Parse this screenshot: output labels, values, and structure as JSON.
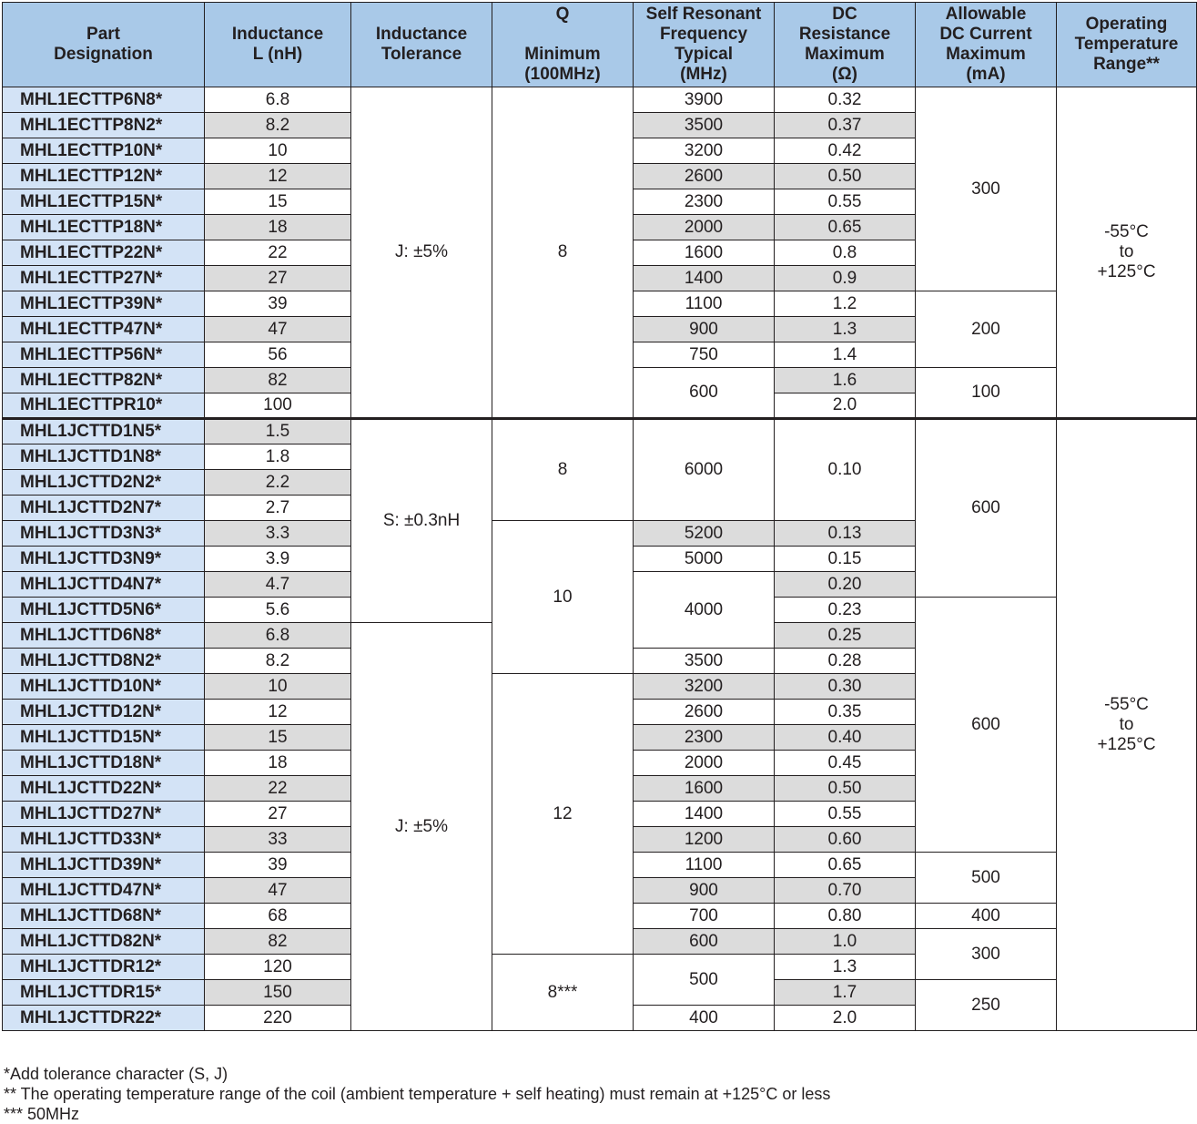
{
  "headers": [
    "Part\nDesignation",
    "Inductance\nL (nH)",
    "Inductance\nTolerance",
    "Q\n\nMinimum\n(100MHz)",
    "Self Resonant\nFrequency\nTypical\n(MHz)",
    "DC\nResistance\nMaximum\n(Ω)",
    "Allowable\nDC Current\nMaximum\n(mA)",
    "Operating\nTemperature\nRange**"
  ],
  "rows": [
    {
      "part": "MHL1ECTTP6N8*",
      "L": "6.8",
      "srf": "3900",
      "dcr": "0.32"
    },
    {
      "part": "MHL1ECTTP8N2*",
      "L": "8.2",
      "srf": "3500",
      "dcr": "0.37"
    },
    {
      "part": "MHL1ECTTP10N*",
      "L": "10",
      "srf": "3200",
      "dcr": "0.42"
    },
    {
      "part": "MHL1ECTTP12N*",
      "L": "12",
      "srf": "2600",
      "dcr": "0.50"
    },
    {
      "part": "MHL1ECTTP15N*",
      "L": "15",
      "srf": "2300",
      "dcr": "0.55"
    },
    {
      "part": "MHL1ECTTP18N*",
      "L": "18",
      "srf": "2000",
      "dcr": "0.65"
    },
    {
      "part": "MHL1ECTTP22N*",
      "L": "22",
      "srf": "1600",
      "dcr": "0.8"
    },
    {
      "part": "MHL1ECTTP27N*",
      "L": "27",
      "srf": "1400",
      "dcr": "0.9"
    },
    {
      "part": "MHL1ECTTP39N*",
      "L": "39",
      "srf": "1100",
      "dcr": "1.2"
    },
    {
      "part": "MHL1ECTTP47N*",
      "L": "47",
      "srf": "900",
      "dcr": "1.3"
    },
    {
      "part": "MHL1ECTTP56N*",
      "L": "56",
      "srf": "750",
      "dcr": "1.4"
    },
    {
      "part": "MHL1ECTTP82N*",
      "L": "82",
      "srf": "600",
      "dcr": "1.6"
    },
    {
      "part": "MHL1ECTTPR10*",
      "L": "100",
      "srf": null,
      "dcr": "2.0"
    },
    {
      "part": "MHL1JCTTD1N5*",
      "L": "1.5",
      "srf": "6000",
      "dcr": "0.10"
    },
    {
      "part": "MHL1JCTTD1N8*",
      "L": "1.8",
      "srf": null,
      "dcr": null
    },
    {
      "part": "MHL1JCTTD2N2*",
      "L": "2.2",
      "srf": null,
      "dcr": null
    },
    {
      "part": "MHL1JCTTD2N7*",
      "L": "2.7",
      "srf": null,
      "dcr": null
    },
    {
      "part": "MHL1JCTTD3N3*",
      "L": "3.3",
      "srf": "5200",
      "dcr": "0.13"
    },
    {
      "part": "MHL1JCTTD3N9*",
      "L": "3.9",
      "srf": "5000",
      "dcr": "0.15"
    },
    {
      "part": "MHL1JCTTD4N7*",
      "L": "4.7",
      "srf": "4000",
      "dcr": "0.20"
    },
    {
      "part": "MHL1JCTTD5N6*",
      "L": "5.6",
      "srf": null,
      "dcr": "0.23"
    },
    {
      "part": "MHL1JCTTD6N8*",
      "L": "6.8",
      "srf": null,
      "dcr": "0.25"
    },
    {
      "part": "MHL1JCTTD8N2*",
      "L": "8.2",
      "srf": "3500",
      "dcr": "0.28"
    },
    {
      "part": "MHL1JCTTD10N*",
      "L": "10",
      "srf": "3200",
      "dcr": "0.30"
    },
    {
      "part": "MHL1JCTTD12N*",
      "L": "12",
      "srf": "2600",
      "dcr": "0.35"
    },
    {
      "part": "MHL1JCTTD15N*",
      "L": "15",
      "srf": "2300",
      "dcr": "0.40"
    },
    {
      "part": "MHL1JCTTD18N*",
      "L": "18",
      "srf": "2000",
      "dcr": "0.45"
    },
    {
      "part": "MHL1JCTTD22N*",
      "L": "22",
      "srf": "1600",
      "dcr": "0.50"
    },
    {
      "part": "MHL1JCTTD27N*",
      "L": "27",
      "srf": "1400",
      "dcr": "0.55"
    },
    {
      "part": "MHL1JCTTD33N*",
      "L": "33",
      "srf": "1200",
      "dcr": "0.60"
    },
    {
      "part": "MHL1JCTTD39N*",
      "L": "39",
      "srf": "1100",
      "dcr": "0.65"
    },
    {
      "part": "MHL1JCTTD47N*",
      "L": "47",
      "srf": "900",
      "dcr": "0.70"
    },
    {
      "part": "MHL1JCTTD68N*",
      "L": "68",
      "srf": "700",
      "dcr": "0.80"
    },
    {
      "part": "MHL1JCTTD82N*",
      "L": "82",
      "srf": "600",
      "dcr": "1.0"
    },
    {
      "part": "MHL1JCTTDR12*",
      "L": "120",
      "srf": "500",
      "dcr": "1.3"
    },
    {
      "part": "MHL1JCTTDR15*",
      "L": "150",
      "srf": null,
      "dcr": "1.7"
    },
    {
      "part": "MHL1JCTTDR22*",
      "L": "220",
      "srf": "400",
      "dcr": "2.0"
    }
  ],
  "merged": {
    "tolerance": [
      {
        "row": 0,
        "span": 13,
        "text": "J: ±5%"
      },
      {
        "row": 13,
        "span": 8,
        "text": "S: ±0.3nH"
      },
      {
        "row": 21,
        "span": 16,
        "text": "J: ±5%"
      }
    ],
    "q": [
      {
        "row": 0,
        "span": 13,
        "text": "8"
      },
      {
        "row": 13,
        "span": 4,
        "text": "8"
      },
      {
        "row": 17,
        "span": 6,
        "text": "10"
      },
      {
        "row": 23,
        "span": 11,
        "text": "12"
      },
      {
        "row": 34,
        "span": 3,
        "text": "8***"
      }
    ],
    "current": [
      {
        "row": 0,
        "span": 8,
        "text": "300"
      },
      {
        "row": 8,
        "span": 3,
        "text": "200"
      },
      {
        "row": 11,
        "span": 2,
        "text": "100"
      },
      {
        "row": 13,
        "span": 7,
        "text": "600"
      },
      {
        "row": 20,
        "span": 10,
        "text": "600"
      },
      {
        "row": 30,
        "span": 2,
        "text": "500"
      },
      {
        "row": 32,
        "span": 1,
        "text": "400"
      },
      {
        "row": 33,
        "span": 2,
        "text": "300"
      },
      {
        "row": 35,
        "span": 2,
        "text": "250"
      }
    ],
    "temperature": [
      {
        "row": 0,
        "span": 13,
        "text": "-55°C\nto\n+125°C"
      },
      {
        "row": 13,
        "span": 24,
        "text": "-55°C\nto\n+125°C"
      }
    ],
    "srf_spans": [
      {
        "row": 11,
        "span": 2
      },
      {
        "row": 13,
        "span": 4
      },
      {
        "row": 19,
        "span": 3
      },
      {
        "row": 34,
        "span": 2
      }
    ]
  },
  "shaded": {
    "L": [
      1,
      3,
      5,
      7,
      9,
      11,
      13,
      15,
      17,
      19,
      21,
      23,
      25,
      27,
      29,
      31,
      33,
      35
    ],
    "srf": [
      1,
      3,
      5,
      7,
      9,
      17,
      23,
      25,
      27,
      29,
      31,
      33
    ],
    "dcr": [
      1,
      3,
      5,
      7,
      9,
      11,
      17,
      19,
      21,
      23,
      25,
      27,
      29,
      31,
      33,
      35
    ]
  },
  "footnotes": [
    "*Add tolerance character (S, J)",
    "** The operating temperature range of the coil (ambient temperature + self heating) must remain at +125°C or less",
    "*** 50MHz"
  ]
}
